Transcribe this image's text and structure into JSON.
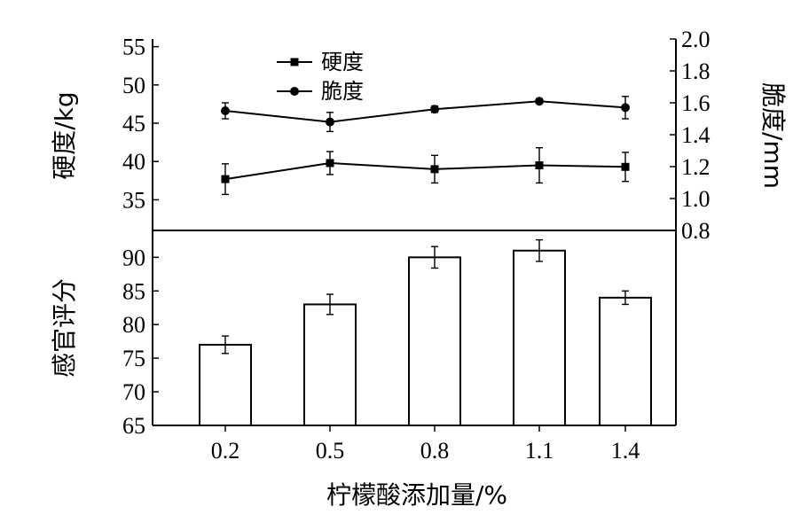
{
  "chart_data": [
    {
      "type": "line",
      "xlabel": "",
      "x_categories": [
        "0.2",
        "0.5",
        "0.8",
        "1.1",
        "1.4"
      ],
      "y_left": {
        "label": "硬度/kg",
        "lim": [
          31,
          56
        ],
        "ticks": [
          35,
          40,
          45,
          50,
          55
        ]
      },
      "y_right": {
        "label": "脆度/mm",
        "lim": [
          0.8,
          2.0
        ],
        "ticks": [
          "0.8",
          "1.0",
          "1.2",
          "1.4",
          "1.6",
          "1.8",
          "2.0"
        ]
      },
      "legend": {
        "placement": "top-center"
      },
      "series": [
        {
          "name": "硬度",
          "marker": "square",
          "axis": "left",
          "values": [
            37.7,
            39.8,
            39.0,
            39.5,
            39.3
          ],
          "errors": [
            2.0,
            1.5,
            1.8,
            2.3,
            1.9
          ]
        },
        {
          "name": "脆度",
          "marker": "circle",
          "axis": "right",
          "values": [
            1.55,
            1.48,
            1.56,
            1.61,
            1.57
          ],
          "errors": [
            0.05,
            0.06,
            0.02,
            0.01,
            0.07
          ]
        }
      ]
    },
    {
      "type": "bar",
      "xlabel": "柠檬酸添加量/%",
      "ylabel": "感官评分",
      "categories": [
        "0.2",
        "0.5",
        "0.8",
        "1.1",
        "1.4"
      ],
      "values": [
        77,
        83,
        90,
        91,
        84
      ],
      "errors": [
        1.3,
        1.5,
        1.6,
        1.6,
        1.0
      ],
      "ylim": [
        65,
        94
      ],
      "yticks": [
        65,
        70,
        75,
        80,
        85,
        90
      ]
    }
  ]
}
